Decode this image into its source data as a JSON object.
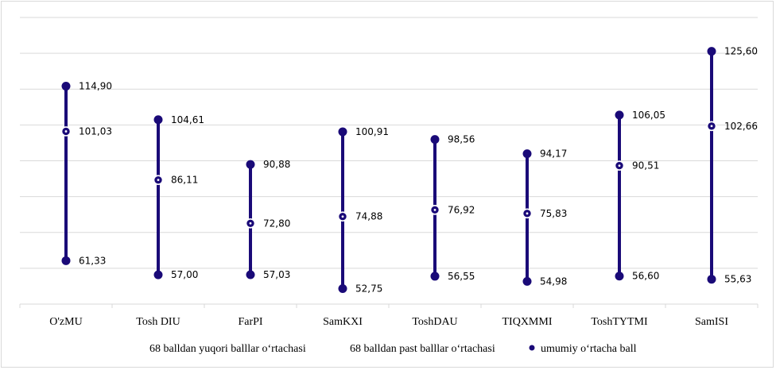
{
  "chart_data": {
    "type": "range",
    "categories": [
      "O'zMU",
      "Tosh DIU",
      "FarPI",
      "SamKXI",
      "ToshDAU",
      "TIQXMMI",
      "ToshTYTMI",
      "SamISI"
    ],
    "series": [
      {
        "name": "68 balldan  yuqori  balllar  o‘rtachasi",
        "values": [
          "114,90",
          "104,61",
          "90,88",
          "100,91",
          "98,56",
          "94,17",
          "106,05",
          "125,60"
        ]
      },
      {
        "name": "68 balldan  past balllar  o‘rtachasi",
        "values": [
          "61,33",
          "57,00",
          "57,03",
          "52,75",
          "56,55",
          "54,98",
          "56,60",
          "55,63"
        ]
      },
      {
        "name": "umumiy  o‘rtacha ball",
        "values": [
          "101,03",
          "86,11",
          "72,80",
          "74,88",
          "76,92",
          "75,83",
          "90,51",
          "102,66"
        ]
      }
    ],
    "ylim": [
      48,
      136
    ],
    "grid": true,
    "legend_position": "bottom",
    "colors": {
      "range_line": "#1a0a78",
      "marker": "#1a0a78",
      "grid": "#d9d9d9"
    }
  }
}
